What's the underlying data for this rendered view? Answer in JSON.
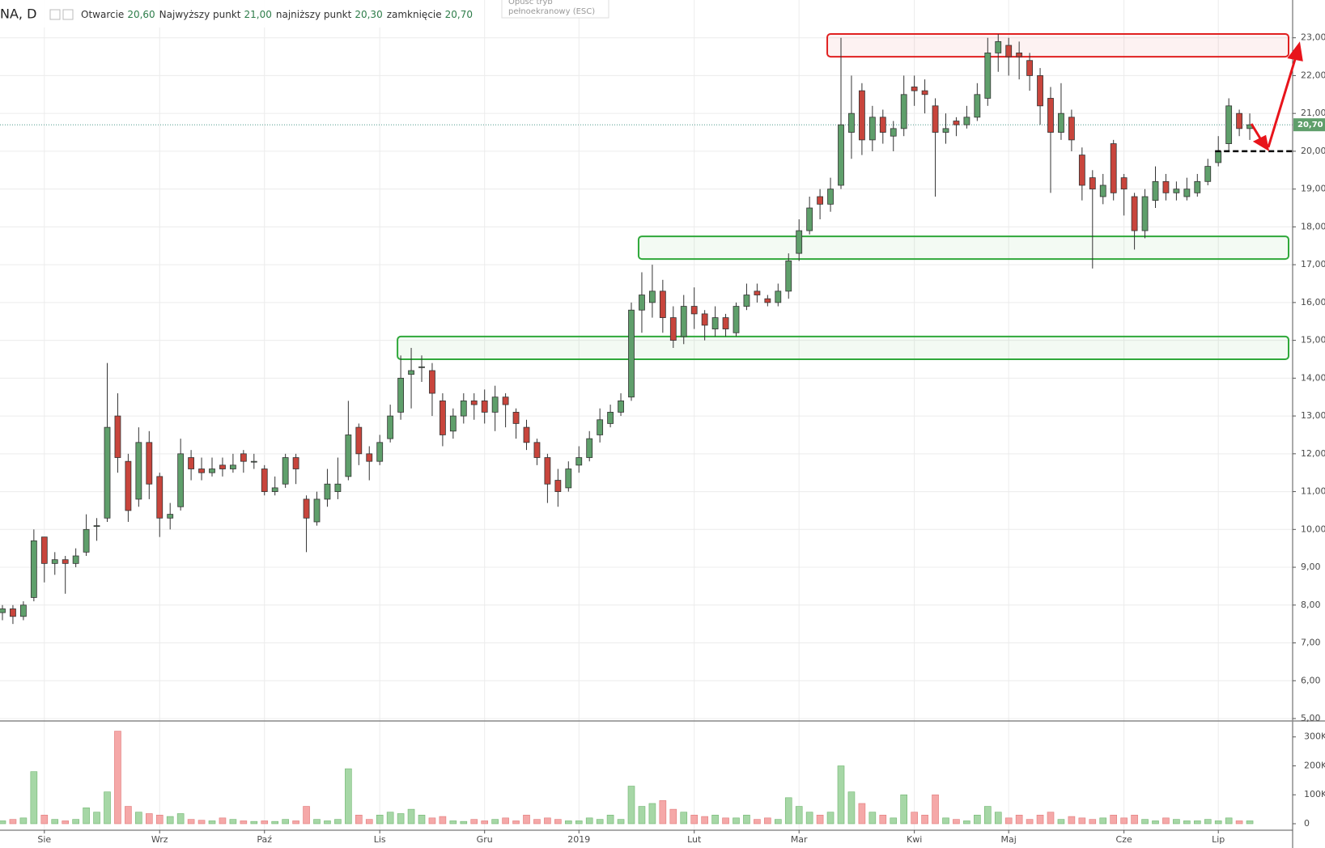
{
  "chart_data": {
    "type": "candlestick",
    "symbol": "NA, D",
    "legend": [
      {
        "label": "Otwarcie",
        "value": "20,60"
      },
      {
        "label": "Najwyższy punkt",
        "value": "21,00"
      },
      {
        "label": "najniższy punkt",
        "value": "20,30"
      },
      {
        "label": "zamknięcie",
        "value": "20,70"
      }
    ],
    "tooltip": [
      "Opuść tryb",
      "pełnoekranowy (ESC)"
    ],
    "candles": {
      "open": [
        7.8,
        7.9,
        7.7,
        8.2,
        9.8,
        9.1,
        9.2,
        9.1,
        9.4,
        10.1,
        10.3,
        13.0,
        11.8,
        10.8,
        12.3,
        11.4,
        10.3,
        10.6,
        11.9,
        11.6,
        11.5,
        11.7,
        11.6,
        12.0,
        11.8,
        11.6,
        11.0,
        11.2,
        11.9,
        10.8,
        10.2,
        10.8,
        11.0,
        11.4,
        12.7,
        12.0,
        11.8,
        12.4,
        13.1,
        14.1,
        14.3,
        14.2,
        13.4,
        12.6,
        13.0,
        13.4,
        13.4,
        13.1,
        13.5,
        13.1,
        12.7,
        12.3,
        11.9,
        11.3,
        11.1,
        11.7,
        11.9,
        12.5,
        12.8,
        13.1,
        13.5,
        15.8,
        16.0,
        16.3,
        15.6,
        15.1,
        15.9,
        15.7,
        15.3,
        15.6,
        15.2,
        15.9,
        16.3,
        16.1,
        16.0,
        16.3,
        17.3,
        17.9,
        18.8,
        18.6,
        19.1,
        20.5,
        21.6,
        20.3,
        20.9,
        20.4,
        20.6,
        21.7,
        21.6,
        21.2,
        20.5,
        20.8,
        20.7,
        20.9,
        21.4,
        22.6,
        22.8,
        22.6,
        22.4,
        22.0,
        21.4,
        20.5,
        20.9,
        19.9,
        19.3,
        18.8,
        20.2,
        19.3,
        18.8,
        17.9,
        18.7,
        19.2,
        18.9,
        18.8,
        18.9,
        19.2,
        19.7,
        20.2,
        21.0,
        20.6
      ],
      "high": [
        8.0,
        8.0,
        8.1,
        10.0,
        9.8,
        9.4,
        9.3,
        9.5,
        10.4,
        10.3,
        14.4,
        13.6,
        12.0,
        12.7,
        12.6,
        11.5,
        10.7,
        12.4,
        12.1,
        11.9,
        11.9,
        11.9,
        12.0,
        12.1,
        12.0,
        11.7,
        11.4,
        12.0,
        12.0,
        10.9,
        11.0,
        11.6,
        11.9,
        13.4,
        12.8,
        12.2,
        12.5,
        13.3,
        14.6,
        14.8,
        14.6,
        14.4,
        13.6,
        13.2,
        13.6,
        13.6,
        13.7,
        13.8,
        13.6,
        13.2,
        12.9,
        12.4,
        12.0,
        11.6,
        11.8,
        12.2,
        12.6,
        13.2,
        13.3,
        13.6,
        16.0,
        16.8,
        17.0,
        16.6,
        15.9,
        16.2,
        16.4,
        15.8,
        15.9,
        15.7,
        16.0,
        16.5,
        16.5,
        16.2,
        16.5,
        17.3,
        18.2,
        18.8,
        19.0,
        19.3,
        23.0,
        22.0,
        21.8,
        21.2,
        21.1,
        20.8,
        22.0,
        22.0,
        21.9,
        21.4,
        21.0,
        20.9,
        21.2,
        21.8,
        23.0,
        23.1,
        23.0,
        22.9,
        22.6,
        22.2,
        21.7,
        21.8,
        21.1,
        20.1,
        19.5,
        19.4,
        20.3,
        19.4,
        18.9,
        19.0,
        19.6,
        19.4,
        19.2,
        19.3,
        19.4,
        19.8,
        20.4,
        21.4,
        21.1,
        21.0
      ],
      "low": [
        7.6,
        7.5,
        7.6,
        8.1,
        8.6,
        8.8,
        8.3,
        9.0,
        9.3,
        9.7,
        10.2,
        11.5,
        10.2,
        10.6,
        10.8,
        9.8,
        10.0,
        10.5,
        11.3,
        11.3,
        11.4,
        11.4,
        11.5,
        11.5,
        11.6,
        10.9,
        10.9,
        11.1,
        11.2,
        9.4,
        10.1,
        10.6,
        10.8,
        11.3,
        11.7,
        11.3,
        11.7,
        12.3,
        12.9,
        13.2,
        13.9,
        13.0,
        12.2,
        12.4,
        12.8,
        12.9,
        12.8,
        12.6,
        12.7,
        12.4,
        12.1,
        11.7,
        10.7,
        10.6,
        11.0,
        11.5,
        11.8,
        12.3,
        12.7,
        13.0,
        13.4,
        15.2,
        15.6,
        15.2,
        14.8,
        14.9,
        15.3,
        15.0,
        15.1,
        15.1,
        15.1,
        15.8,
        16.0,
        15.9,
        15.9,
        16.1,
        17.1,
        17.8,
        18.2,
        18.4,
        19.0,
        19.8,
        19.9,
        20.0,
        20.2,
        20.0,
        20.4,
        21.2,
        21.0,
        18.8,
        20.2,
        20.4,
        20.6,
        20.8,
        21.2,
        22.1,
        22.0,
        21.9,
        21.6,
        20.7,
        18.9,
        20.3,
        20.0,
        18.7,
        16.9,
        18.6,
        18.7,
        18.3,
        17.4,
        17.7,
        18.5,
        18.7,
        18.7,
        18.7,
        18.8,
        19.1,
        19.6,
        20.0,
        20.4,
        20.3
      ],
      "close": [
        7.9,
        7.7,
        8.0,
        9.7,
        9.1,
        9.2,
        9.1,
        9.3,
        10.0,
        10.1,
        12.7,
        11.9,
        10.5,
        12.3,
        11.2,
        10.3,
        10.4,
        12.0,
        11.6,
        11.5,
        11.6,
        11.6,
        11.7,
        11.8,
        11.8,
        11.0,
        11.1,
        11.9,
        11.6,
        10.3,
        10.8,
        11.2,
        11.2,
        12.5,
        12.0,
        11.8,
        12.3,
        13.0,
        14.0,
        14.2,
        14.3,
        13.6,
        12.5,
        13.0,
        13.4,
        13.3,
        13.1,
        13.5,
        13.3,
        12.8,
        12.3,
        11.9,
        11.2,
        11.0,
        11.6,
        11.9,
        12.4,
        12.9,
        13.1,
        13.4,
        15.8,
        16.2,
        16.3,
        15.6,
        15.0,
        15.9,
        15.7,
        15.4,
        15.6,
        15.3,
        15.9,
        16.2,
        16.2,
        16.0,
        16.3,
        17.1,
        17.9,
        18.5,
        18.6,
        19.0,
        20.7,
        21.0,
        20.3,
        20.9,
        20.5,
        20.6,
        21.5,
        21.6,
        21.5,
        20.5,
        20.6,
        20.7,
        20.9,
        21.5,
        22.6,
        22.9,
        22.5,
        22.5,
        22.0,
        21.2,
        20.5,
        21.0,
        20.3,
        19.1,
        19.0,
        19.1,
        18.9,
        19.0,
        17.9,
        18.8,
        19.2,
        18.9,
        19.0,
        19.0,
        19.2,
        19.6,
        20.0,
        21.2,
        20.6,
        20.7
      ],
      "volume": [
        10000,
        15000,
        20000,
        180000,
        30000,
        15000,
        10000,
        15000,
        55000,
        40000,
        110000,
        320000,
        60000,
        40000,
        35000,
        30000,
        25000,
        35000,
        15000,
        12000,
        10000,
        20000,
        15000,
        10000,
        8000,
        10000,
        8000,
        15000,
        10000,
        60000,
        15000,
        10000,
        15000,
        190000,
        30000,
        15000,
        30000,
        40000,
        35000,
        50000,
        30000,
        20000,
        25000,
        10000,
        8000,
        15000,
        10000,
        15000,
        20000,
        10000,
        30000,
        15000,
        20000,
        15000,
        10000,
        10000,
        20000,
        15000,
        30000,
        15000,
        130000,
        60000,
        70000,
        80000,
        50000,
        40000,
        30000,
        25000,
        30000,
        20000,
        20000,
        30000,
        15000,
        20000,
        15000,
        90000,
        60000,
        40000,
        30000,
        40000,
        200000,
        110000,
        70000,
        40000,
        30000,
        20000,
        100000,
        40000,
        30000,
        100000,
        20000,
        15000,
        10000,
        30000,
        60000,
        40000,
        20000,
        30000,
        15000,
        30000,
        40000,
        15000,
        25000,
        20000,
        15000,
        20000,
        30000,
        20000,
        30000,
        15000,
        10000,
        20000,
        15000,
        10000,
        10000,
        15000,
        10000,
        20000,
        10000,
        10000
      ]
    },
    "up_color": "#5f9f6b",
    "down_color": "#c8453c",
    "up_volume_color": "#a6d7a6",
    "down_volume_color": "#f5a8a8",
    "ylim": [
      5,
      23.4
    ],
    "yticks": [
      {
        "value": 5,
        "label": "5,00"
      },
      {
        "value": 6,
        "label": "6,00"
      },
      {
        "value": 7,
        "label": "7,00"
      },
      {
        "value": 8,
        "label": "8,00"
      },
      {
        "value": 9,
        "label": "9,00"
      },
      {
        "value": 10,
        "label": "10,00"
      },
      {
        "value": 11,
        "label": "11,00"
      },
      {
        "value": 12,
        "label": "12,00"
      },
      {
        "value": 13,
        "label": "13,00"
      },
      {
        "value": 14,
        "label": "14,00"
      },
      {
        "value": 15,
        "label": "15,00"
      },
      {
        "value": 16,
        "label": "16,00"
      },
      {
        "value": 17,
        "label": "17,00"
      },
      {
        "value": 18,
        "label": "18,00"
      },
      {
        "value": 19,
        "label": "19,00"
      },
      {
        "value": 20,
        "label": "20,00"
      },
      {
        "value": 21,
        "label": "21,00"
      },
      {
        "value": 22,
        "label": "22,00"
      },
      {
        "value": 23,
        "label": "23,00"
      }
    ],
    "y2lim": [
      0,
      330000
    ],
    "y2ticks": [
      0,
      {
        "value": 100000,
        "label": "100K"
      },
      {
        "value": 200000,
        "label": "200K"
      },
      {
        "value": 300000,
        "label": "300K"
      }
    ],
    "xticks": [
      {
        "value": 4,
        "label": "Sie"
      },
      {
        "value": 15,
        "label": "Wrz"
      },
      {
        "value": 25,
        "label": "Paź"
      },
      {
        "value": 36,
        "label": "Lis"
      },
      {
        "value": 46,
        "label": "Gru"
      },
      {
        "value": 55,
        "label": "2019"
      },
      {
        "value": 66,
        "label": "Lut"
      },
      {
        "value": 76,
        "label": "Mar"
      },
      {
        "value": 87,
        "label": "Kwi"
      },
      {
        "value": 96,
        "label": "Maj"
      },
      {
        "value": 107,
        "label": "Cze"
      },
      {
        "value": 116,
        "label": "Lip"
      }
    ],
    "grid": true,
    "last_price": {
      "value": 20.7,
      "label": "20,70"
    },
    "zones": [
      {
        "color": "#e02020",
        "start": 79,
        "low": 22.5,
        "high": 23.1
      },
      {
        "color": "#2fa83a",
        "start": 61,
        "low": 17.15,
        "high": 17.75
      },
      {
        "color": "#2fa83a",
        "start": 38,
        "low": 14.5,
        "high": 15.1
      }
    ],
    "level": {
      "value": 20.0,
      "start": 116
    }
  }
}
